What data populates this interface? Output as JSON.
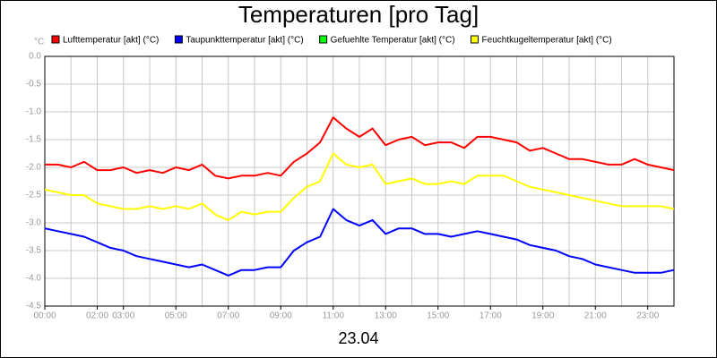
{
  "chart_data": {
    "type": "line",
    "title": "Temperaturen [pro Tag]",
    "y_unit": "°C",
    "x_label": "23.04",
    "x": [
      0,
      0.5,
      1,
      1.5,
      2,
      2.5,
      3,
      3.5,
      4,
      4.5,
      5,
      5.5,
      6,
      6.5,
      7,
      7.5,
      8,
      8.5,
      9,
      9.5,
      10,
      10.5,
      11,
      11.5,
      12,
      12.5,
      13,
      13.5,
      14,
      14.5,
      15,
      15.5,
      16,
      16.5,
      17,
      17.5,
      18,
      18.5,
      19,
      19.5,
      20,
      20.5,
      21,
      21.5,
      22,
      22.5,
      23,
      23.5,
      24
    ],
    "series": [
      {
        "name": "Lufttemperatur [akt] (°C)",
        "color": "#ff0000",
        "values": [
          -1.95,
          -1.95,
          -2.0,
          -1.9,
          -2.05,
          -2.05,
          -2.0,
          -2.1,
          -2.05,
          -2.1,
          -2.0,
          -2.05,
          -1.95,
          -2.15,
          -2.2,
          -2.15,
          -2.15,
          -2.1,
          -2.15,
          -1.9,
          -1.75,
          -1.55,
          -1.1,
          -1.3,
          -1.45,
          -1.3,
          -1.6,
          -1.5,
          -1.45,
          -1.6,
          -1.55,
          -1.55,
          -1.65,
          -1.45,
          -1.45,
          -1.5,
          -1.55,
          -1.7,
          -1.65,
          -1.75,
          -1.85,
          -1.85,
          -1.9,
          -1.95,
          -1.95,
          -1.85,
          -1.95,
          -2.0,
          -2.05
        ]
      },
      {
        "name": "Taupunkttemperatur [akt] (°C)",
        "color": "#0000ff",
        "values": [
          -3.1,
          -3.15,
          -3.2,
          -3.25,
          -3.35,
          -3.45,
          -3.5,
          -3.6,
          -3.65,
          -3.7,
          -3.75,
          -3.8,
          -3.75,
          -3.85,
          -3.95,
          -3.85,
          -3.85,
          -3.8,
          -3.8,
          -3.5,
          -3.35,
          -3.25,
          -2.75,
          -2.95,
          -3.05,
          -2.95,
          -3.2,
          -3.1,
          -3.1,
          -3.2,
          -3.2,
          -3.25,
          -3.2,
          -3.15,
          -3.2,
          -3.25,
          -3.3,
          -3.4,
          -3.45,
          -3.5,
          -3.6,
          -3.65,
          -3.75,
          -3.8,
          -3.85,
          -3.9,
          -3.9,
          -3.9,
          -3.85
        ]
      },
      {
        "name": "Gefuehlte Temperatur [akt] (°C)",
        "color": "#00ff00",
        "values": [
          null,
          null,
          null,
          null,
          null,
          null,
          null,
          null,
          null,
          null,
          null,
          null,
          null,
          null,
          null,
          null,
          null,
          null,
          null,
          null,
          null,
          null,
          null,
          null,
          null,
          null,
          null,
          null,
          null,
          null,
          null,
          null,
          null,
          null,
          null,
          null,
          null,
          null,
          null,
          null,
          null,
          null,
          null,
          null,
          null,
          null,
          null,
          null,
          null
        ]
      },
      {
        "name": "Feuchtkugeltemperatur [akt] (°C)",
        "color": "#ffff00",
        "values": [
          -2.4,
          -2.45,
          -2.5,
          -2.5,
          -2.65,
          -2.7,
          -2.75,
          -2.75,
          -2.7,
          -2.75,
          -2.7,
          -2.75,
          -2.65,
          -2.85,
          -2.95,
          -2.8,
          -2.85,
          -2.8,
          -2.8,
          -2.55,
          -2.35,
          -2.25,
          -1.75,
          -1.95,
          -2.0,
          -1.95,
          -2.3,
          -2.25,
          -2.2,
          -2.3,
          -2.3,
          -2.25,
          -2.3,
          -2.15,
          -2.15,
          -2.15,
          -2.25,
          -2.35,
          -2.4,
          -2.45,
          -2.5,
          -2.55,
          -2.6,
          -2.65,
          -2.7,
          -2.7,
          -2.7,
          -2.7,
          -2.75
        ]
      }
    ],
    "xlim": [
      0,
      24
    ],
    "xticks": [
      {
        "value": 0,
        "label": "00:00"
      },
      {
        "value": 2,
        "label": "02:00"
      },
      {
        "value": 3,
        "label": "03:00"
      },
      {
        "value": 5,
        "label": "05:00"
      },
      {
        "value": 7,
        "label": "07:00"
      },
      {
        "value": 9,
        "label": "09:00"
      },
      {
        "value": 11,
        "label": "11:00"
      },
      {
        "value": 13,
        "label": "13:00"
      },
      {
        "value": 15,
        "label": "15:00"
      },
      {
        "value": 17,
        "label": "17:00"
      },
      {
        "value": 19,
        "label": "19:00"
      },
      {
        "value": 21,
        "label": "21:00"
      },
      {
        "value": 23,
        "label": "23:00"
      }
    ],
    "xgrid": [
      0,
      1,
      2,
      3,
      4,
      5,
      6,
      7,
      8,
      9,
      10,
      11,
      12,
      13,
      14,
      15,
      16,
      17,
      18,
      19,
      20,
      21,
      22,
      23,
      24
    ],
    "ylim": [
      -4.5,
      0
    ],
    "yticks": [
      {
        "value": 0,
        "label": "0.0"
      },
      -0.5,
      {
        "value": -1,
        "label": "-1.0"
      },
      -1.5,
      {
        "value": -2,
        "label": "-2.0"
      },
      -2.5,
      {
        "value": -3,
        "label": "-3.0"
      },
      -3.5,
      {
        "value": -4,
        "label": "-4.0"
      },
      -4.5
    ],
    "grid": true
  }
}
